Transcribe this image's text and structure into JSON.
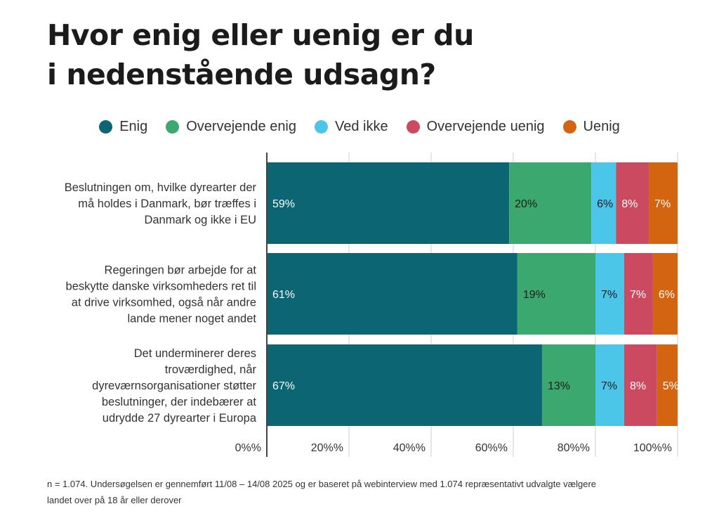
{
  "title_lines": [
    "Hvor enig eller uenig er du",
    "i nedenstående udsagn?"
  ],
  "colors": {
    "Enig": "#0b6573",
    "Overvejende enig": "#3aa86f",
    "Ved ikke": "#4cc6e8",
    "Overvejende uenig": "#cc4a5f",
    "Uenig": "#d36410"
  },
  "chart_data": {
    "type": "bar",
    "orientation": "horizontal",
    "stacked": true,
    "legend_position": "top",
    "categories": [
      "Beslutningen om, hvilke dyrearter der må holdes i Danmark, bør træffes i Danmark og ikke i EU",
      "Regeringen bør arbejde for at beskytte danske virksomheders ret til at drive virksomhed, også når andre lande mener noget andet",
      "Det underminerer deres troværdighed, når dyreværnsorganisationer støtter beslutninger, der indebærer at udrydde 27 dyrearter i Europa"
    ],
    "category_lines": [
      [
        "Beslutningen om, hvilke dyrearter der",
        "må holdes i Danmark, bør træffes i",
        "Danmark og ikke i EU"
      ],
      [
        "Regeringen bør arbejde for at",
        "beskytte danske virksomheders ret til",
        "at drive virksomhed, også når andre",
        "lande mener noget andet"
      ],
      [
        "Det underminerer deres",
        "troværdighed, når",
        "dyreværnsorganisationer støtter",
        "beslutninger, der indebærer at",
        "udrydde 27 dyrearter i Europa"
      ]
    ],
    "series": [
      {
        "name": "Enig",
        "values": [
          59,
          61,
          67
        ]
      },
      {
        "name": "Overvejende enig",
        "values": [
          20,
          19,
          13
        ]
      },
      {
        "name": "Ved ikke",
        "values": [
          6,
          7,
          7
        ]
      },
      {
        "name": "Overvejende uenig",
        "values": [
          8,
          7,
          8
        ]
      },
      {
        "name": "Uenig",
        "values": [
          7,
          6,
          5
        ]
      }
    ],
    "data_labels": [
      [
        "59%",
        "20%",
        "6%",
        "8%",
        "7%"
      ],
      [
        "61%",
        "19%",
        "7%",
        "7%",
        "6%"
      ],
      [
        "67%",
        "13%",
        "7%",
        "8%",
        "5%"
      ]
    ],
    "label_colors": [
      "#ffffff",
      "#1b1b1b",
      "#1b1b1b",
      "#ffffff",
      "#ffffff"
    ],
    "xlim": [
      0,
      100
    ],
    "xticks": [
      0,
      20,
      40,
      60,
      80,
      100
    ],
    "xtick_labels": [
      "0%%",
      "20%%",
      "40%%",
      "60%%",
      "80%%",
      "100%%"
    ],
    "grid": true
  },
  "footnote_lines": [
    "n = 1.074. Undersøgelsen er gennemført 11/08 – 14/08 2025 og er baseret på webinterview med 1.074 repræsentativt udvalgte vælgere",
    "landet over på 18 år eller derover"
  ]
}
